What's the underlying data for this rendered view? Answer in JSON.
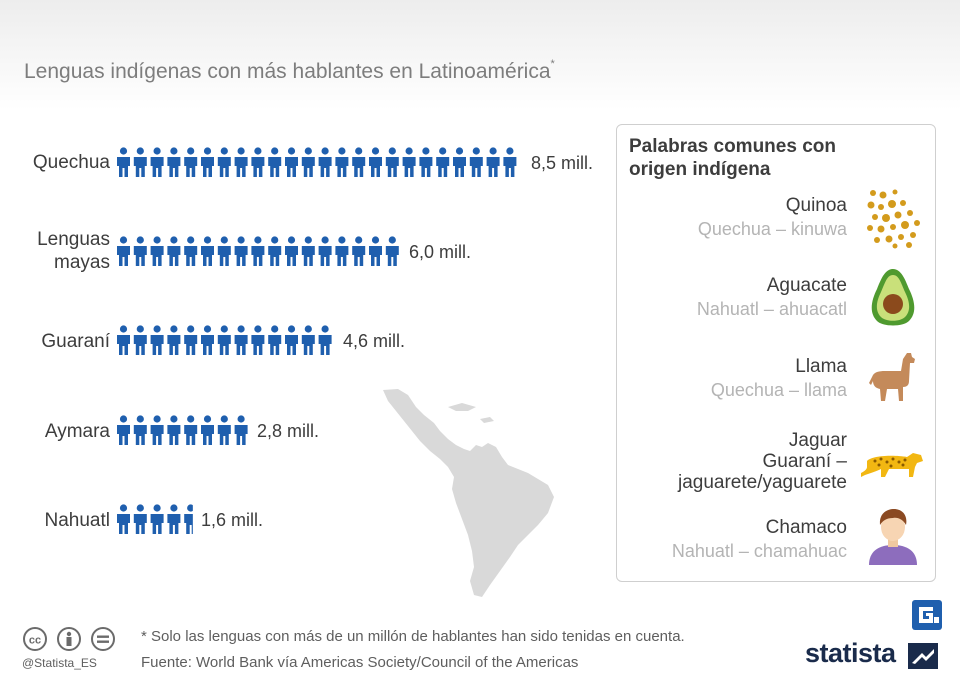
{
  "title": "Lenguas indígenas con más hablantes en Latinoamérica",
  "title_mark": "*",
  "chart_data": {
    "type": "bar",
    "categories": [
      "Quechua",
      "Lenguas mayas",
      "Guaraní",
      "Aymara",
      "Nahuatl"
    ],
    "values": [
      8.5,
      6.0,
      4.6,
      2.8,
      1.6
    ],
    "value_labels": [
      "8,5 mill.",
      "6,0 mill.",
      "4,6 mill.",
      "2,8 mill.",
      "1,6 mill."
    ],
    "unit": "mill.",
    "style": "pictograph (one person icon ≈ 0.35 mill.)",
    "color": "#1f5fae"
  },
  "labels": {
    "quechua": "Quechua",
    "mayas_1": "Lenguas",
    "mayas_2": "mayas",
    "guarani": "Guaraní",
    "aymara": "Aymara",
    "nahuatl": "Nahuatl"
  },
  "words": {
    "title_line1": "Palabras comunes con",
    "title_line2": "origen indígena",
    "items": [
      {
        "word": "Quinoa",
        "origin": "Quechua – kinuwa",
        "icon": "quinoa-icon"
      },
      {
        "word": "Aguacate",
        "origin": "Nahuatl – ahuacatl",
        "icon": "avocado-icon"
      },
      {
        "word": "Llama",
        "origin": "Quechua – llama",
        "icon": "llama-icon"
      },
      {
        "word_line1": "Jaguar",
        "word_line2": "Guaraní –",
        "word_line3": "jaguarete/yaguarete",
        "icon": "jaguar-icon"
      },
      {
        "word": "Chamaco",
        "origin": "Nahuatl  – chamahuac",
        "icon": "boy-icon"
      }
    ]
  },
  "footer": {
    "note": "* Solo las lenguas con más de un millón de hablantes han sido tenidas en cuenta.",
    "source": "Fuente: World Bank vía Americas Society/Council of the Americas",
    "handle": "@Statista_ES",
    "brand": "statista"
  },
  "colors": {
    "person_icon": "#1f5fae",
    "map": "#d9d9d9",
    "brand": "#1a2b4b"
  }
}
